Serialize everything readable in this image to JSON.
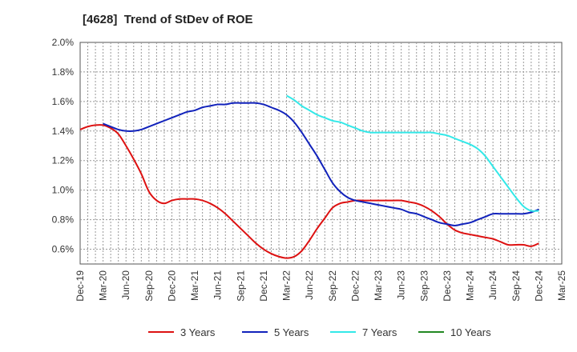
{
  "chart_data": {
    "type": "line",
    "title": "[4628]  Trend of StDev of ROE",
    "xlabel": "",
    "ylabel": "",
    "x_ticks": [
      "Dec-19",
      "Mar-20",
      "Jun-20",
      "Sep-20",
      "Dec-20",
      "Mar-21",
      "Jun-21",
      "Sep-21",
      "Dec-21",
      "Mar-22",
      "Jun-22",
      "Sep-22",
      "Dec-22",
      "Mar-23",
      "Jun-23",
      "Sep-23",
      "Dec-23",
      "Mar-24",
      "Jun-24",
      "Sep-24",
      "Dec-24",
      "Mar-25"
    ],
    "y_ticks": [
      "2.0%",
      "1.8%",
      "1.6%",
      "1.4%",
      "1.2%",
      "1.0%",
      "0.8%",
      "0.6%"
    ],
    "ylim": [
      0.5,
      2.0
    ],
    "grid": true,
    "legend_position": "bottom",
    "series": [
      {
        "name": "3 Years",
        "color": "#dd1111",
        "points": [
          [
            "Dec-19",
            1.41
          ],
          [
            "Jan-20",
            1.43
          ],
          [
            "Feb-20",
            1.44
          ],
          [
            "Mar-20",
            1.44
          ],
          [
            "Apr-20",
            1.42
          ],
          [
            "May-20",
            1.38
          ],
          [
            "Jun-20",
            1.3
          ],
          [
            "Jul-20",
            1.21
          ],
          [
            "Aug-20",
            1.11
          ],
          [
            "Sep-20",
            0.99
          ],
          [
            "Oct-20",
            0.93
          ],
          [
            "Nov-20",
            0.91
          ],
          [
            "Dec-20",
            0.93
          ],
          [
            "Jan-21",
            0.94
          ],
          [
            "Feb-21",
            0.94
          ],
          [
            "Mar-21",
            0.94
          ],
          [
            "Apr-21",
            0.93
          ],
          [
            "May-21",
            0.91
          ],
          [
            "Jun-21",
            0.88
          ],
          [
            "Jul-21",
            0.84
          ],
          [
            "Aug-21",
            0.79
          ],
          [
            "Sep-21",
            0.74
          ],
          [
            "Oct-21",
            0.69
          ],
          [
            "Nov-21",
            0.64
          ],
          [
            "Dec-21",
            0.6
          ],
          [
            "Jan-22",
            0.57
          ],
          [
            "Feb-22",
            0.55
          ],
          [
            "Mar-22",
            0.54
          ],
          [
            "Apr-22",
            0.55
          ],
          [
            "May-22",
            0.59
          ],
          [
            "Jun-22",
            0.66
          ],
          [
            "Jul-22",
            0.74
          ],
          [
            "Aug-22",
            0.81
          ],
          [
            "Sep-22",
            0.88
          ],
          [
            "Oct-22",
            0.91
          ],
          [
            "Nov-22",
            0.92
          ],
          [
            "Dec-22",
            0.93
          ],
          [
            "Jan-23",
            0.93
          ],
          [
            "Feb-23",
            0.93
          ],
          [
            "Mar-23",
            0.93
          ],
          [
            "Apr-23",
            0.93
          ],
          [
            "May-23",
            0.93
          ],
          [
            "Jun-23",
            0.93
          ],
          [
            "Jul-23",
            0.92
          ],
          [
            "Aug-23",
            0.91
          ],
          [
            "Sep-23",
            0.89
          ],
          [
            "Oct-23",
            0.86
          ],
          [
            "Nov-23",
            0.82
          ],
          [
            "Dec-23",
            0.77
          ],
          [
            "Jan-24",
            0.73
          ],
          [
            "Feb-24",
            0.71
          ],
          [
            "Mar-24",
            0.7
          ],
          [
            "Apr-24",
            0.69
          ],
          [
            "May-24",
            0.68
          ],
          [
            "Jun-24",
            0.67
          ],
          [
            "Jul-24",
            0.65
          ],
          [
            "Aug-24",
            0.63
          ],
          [
            "Sep-24",
            0.63
          ],
          [
            "Oct-24",
            0.63
          ],
          [
            "Nov-24",
            0.62
          ],
          [
            "Dec-24",
            0.64
          ]
        ]
      },
      {
        "name": "5 Years",
        "color": "#1122bb",
        "points": [
          [
            "Mar-20",
            1.45
          ],
          [
            "Apr-20",
            1.43
          ],
          [
            "May-20",
            1.41
          ],
          [
            "Jun-20",
            1.4
          ],
          [
            "Jul-20",
            1.4
          ],
          [
            "Aug-20",
            1.41
          ],
          [
            "Sep-20",
            1.43
          ],
          [
            "Oct-20",
            1.45
          ],
          [
            "Nov-20",
            1.47
          ],
          [
            "Dec-20",
            1.49
          ],
          [
            "Jan-21",
            1.51
          ],
          [
            "Feb-21",
            1.53
          ],
          [
            "Mar-21",
            1.54
          ],
          [
            "Apr-21",
            1.56
          ],
          [
            "May-21",
            1.57
          ],
          [
            "Jun-21",
            1.58
          ],
          [
            "Jul-21",
            1.58
          ],
          [
            "Aug-21",
            1.59
          ],
          [
            "Sep-21",
            1.59
          ],
          [
            "Oct-21",
            1.59
          ],
          [
            "Nov-21",
            1.59
          ],
          [
            "Dec-21",
            1.58
          ],
          [
            "Jan-22",
            1.56
          ],
          [
            "Feb-22",
            1.54
          ],
          [
            "Mar-22",
            1.51
          ],
          [
            "Apr-22",
            1.46
          ],
          [
            "May-22",
            1.39
          ],
          [
            "Jun-22",
            1.31
          ],
          [
            "Jul-22",
            1.23
          ],
          [
            "Aug-22",
            1.14
          ],
          [
            "Sep-22",
            1.05
          ],
          [
            "Oct-22",
            0.99
          ],
          [
            "Nov-22",
            0.95
          ],
          [
            "Dec-22",
            0.93
          ],
          [
            "Jan-23",
            0.92
          ],
          [
            "Feb-23",
            0.91
          ],
          [
            "Mar-23",
            0.9
          ],
          [
            "Apr-23",
            0.89
          ],
          [
            "May-23",
            0.88
          ],
          [
            "Jun-23",
            0.87
          ],
          [
            "Jul-23",
            0.85
          ],
          [
            "Aug-23",
            0.84
          ],
          [
            "Sep-23",
            0.82
          ],
          [
            "Oct-23",
            0.8
          ],
          [
            "Nov-23",
            0.78
          ],
          [
            "Dec-23",
            0.77
          ],
          [
            "Jan-24",
            0.76
          ],
          [
            "Feb-24",
            0.77
          ],
          [
            "Mar-24",
            0.78
          ],
          [
            "Apr-24",
            0.8
          ],
          [
            "May-24",
            0.82
          ],
          [
            "Jun-24",
            0.84
          ],
          [
            "Jul-24",
            0.84
          ],
          [
            "Aug-24",
            0.84
          ],
          [
            "Sep-24",
            0.84
          ],
          [
            "Oct-24",
            0.84
          ],
          [
            "Nov-24",
            0.85
          ],
          [
            "Dec-24",
            0.87
          ]
        ]
      },
      {
        "name": "7 Years",
        "color": "#33e8e8",
        "points": [
          [
            "Mar-22",
            1.64
          ],
          [
            "Apr-22",
            1.61
          ],
          [
            "May-22",
            1.57
          ],
          [
            "Jun-22",
            1.54
          ],
          [
            "Jul-22",
            1.51
          ],
          [
            "Aug-22",
            1.49
          ],
          [
            "Sep-22",
            1.47
          ],
          [
            "Oct-22",
            1.46
          ],
          [
            "Nov-22",
            1.44
          ],
          [
            "Dec-22",
            1.42
          ],
          [
            "Jan-23",
            1.4
          ],
          [
            "Feb-23",
            1.39
          ],
          [
            "Mar-23",
            1.39
          ],
          [
            "Apr-23",
            1.39
          ],
          [
            "May-23",
            1.39
          ],
          [
            "Jun-23",
            1.39
          ],
          [
            "Jul-23",
            1.39
          ],
          [
            "Aug-23",
            1.39
          ],
          [
            "Sep-23",
            1.39
          ],
          [
            "Oct-23",
            1.39
          ],
          [
            "Nov-23",
            1.38
          ],
          [
            "Dec-23",
            1.37
          ],
          [
            "Jan-24",
            1.35
          ],
          [
            "Feb-24",
            1.33
          ],
          [
            "Mar-24",
            1.31
          ],
          [
            "Apr-24",
            1.28
          ],
          [
            "May-24",
            1.23
          ],
          [
            "Jun-24",
            1.16
          ],
          [
            "Jul-24",
            1.09
          ],
          [
            "Aug-24",
            1.02
          ],
          [
            "Sep-24",
            0.95
          ],
          [
            "Oct-24",
            0.89
          ],
          [
            "Nov-24",
            0.86
          ],
          [
            "Dec-24",
            0.86
          ]
        ]
      },
      {
        "name": "10 Years",
        "color": "#228822",
        "points": []
      }
    ]
  }
}
